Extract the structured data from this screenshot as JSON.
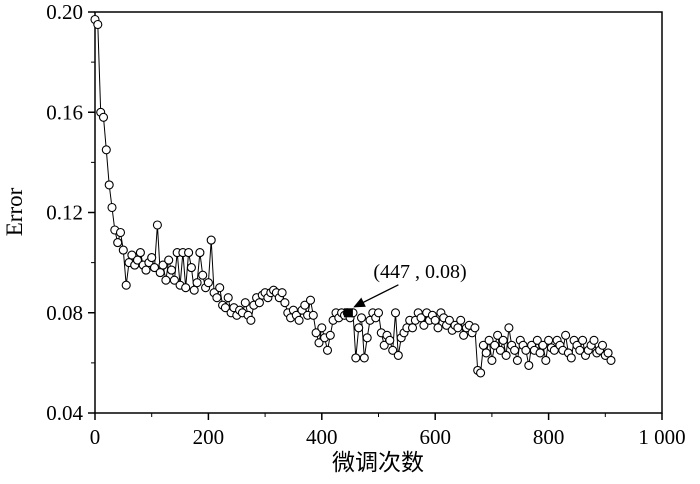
{
  "chart_data": {
    "type": "line",
    "title": "",
    "xlabel": "微调次数",
    "ylabel": "Error",
    "xlim": [
      0,
      1000
    ],
    "ylim": [
      0.04,
      0.2
    ],
    "grid": false,
    "legend": "none",
    "marker": "open-circle",
    "xticks": {
      "values": [
        0,
        200,
        400,
        600,
        800,
        1000
      ],
      "labels": [
        "0",
        "200",
        "400",
        "600",
        "800",
        "1 000"
      ],
      "minor_values": [
        100,
        300,
        500,
        700,
        900
      ]
    },
    "yticks": {
      "values": [
        0.04,
        0.08,
        0.12,
        0.16,
        0.2
      ],
      "labels": [
        "0.04",
        "0.08",
        "0.12",
        "0.16",
        "0.20"
      ],
      "minor_values": [
        0.06,
        0.1,
        0.14,
        0.18
      ]
    },
    "x": [
      0,
      5,
      10,
      15,
      20,
      25,
      30,
      35,
      40,
      45,
      50,
      55,
      60,
      65,
      70,
      75,
      80,
      85,
      90,
      95,
      100,
      105,
      110,
      115,
      120,
      125,
      130,
      135,
      140,
      145,
      150,
      155,
      160,
      165,
      170,
      175,
      180,
      185,
      190,
      195,
      200,
      205,
      210,
      215,
      220,
      225,
      230,
      235,
      240,
      245,
      250,
      255,
      260,
      265,
      270,
      275,
      280,
      285,
      290,
      295,
      300,
      305,
      310,
      315,
      320,
      325,
      330,
      335,
      340,
      345,
      350,
      355,
      360,
      365,
      370,
      375,
      380,
      385,
      390,
      395,
      400,
      405,
      410,
      415,
      420,
      425,
      430,
      435,
      440,
      445,
      450,
      455,
      460,
      465,
      470,
      475,
      480,
      485,
      490,
      495,
      500,
      505,
      510,
      515,
      520,
      525,
      530,
      535,
      540,
      545,
      550,
      555,
      560,
      565,
      570,
      575,
      580,
      585,
      590,
      595,
      600,
      605,
      610,
      615,
      620,
      625,
      630,
      635,
      640,
      645,
      650,
      655,
      660,
      665,
      670,
      675,
      680,
      685,
      690,
      695,
      700,
      705,
      710,
      715,
      720,
      725,
      730,
      735,
      740,
      745,
      750,
      755,
      760,
      765,
      770,
      775,
      780,
      785,
      790,
      795,
      800,
      805,
      810,
      815,
      820,
      825,
      830,
      835,
      840,
      845,
      850,
      855,
      860,
      865,
      870,
      875,
      880,
      885,
      890,
      895,
      900,
      905,
      910
    ],
    "y": [
      0.197,
      0.195,
      0.16,
      0.158,
      0.145,
      0.131,
      0.122,
      0.113,
      0.108,
      0.112,
      0.105,
      0.091,
      0.1,
      0.103,
      0.099,
      0.101,
      0.104,
      0.099,
      0.097,
      0.1,
      0.102,
      0.098,
      0.115,
      0.096,
      0.099,
      0.093,
      0.101,
      0.097,
      0.093,
      0.104,
      0.091,
      0.104,
      0.09,
      0.104,
      0.098,
      0.089,
      0.092,
      0.104,
      0.095,
      0.09,
      0.092,
      0.109,
      0.088,
      0.086,
      0.09,
      0.083,
      0.082,
      0.086,
      0.08,
      0.082,
      0.079,
      0.081,
      0.08,
      0.084,
      0.079,
      0.077,
      0.083,
      0.086,
      0.084,
      0.087,
      0.088,
      0.086,
      0.088,
      0.089,
      0.088,
      0.086,
      0.088,
      0.084,
      0.08,
      0.078,
      0.081,
      0.079,
      0.077,
      0.081,
      0.083,
      0.079,
      0.085,
      0.079,
      0.072,
      0.068,
      0.074,
      0.07,
      0.065,
      0.071,
      0.077,
      0.08,
      0.078,
      0.08,
      0.079,
      0.08,
      0.078,
      0.08,
      0.062,
      0.074,
      0.078,
      0.062,
      0.07,
      0.077,
      0.08,
      0.078,
      0.08,
      0.072,
      0.067,
      0.071,
      0.069,
      0.065,
      0.08,
      0.063,
      0.07,
      0.072,
      0.074,
      0.077,
      0.074,
      0.077,
      0.08,
      0.078,
      0.075,
      0.08,
      0.077,
      0.079,
      0.077,
      0.074,
      0.08,
      0.078,
      0.075,
      0.077,
      0.073,
      0.075,
      0.074,
      0.077,
      0.071,
      0.074,
      0.075,
      0.072,
      0.074,
      0.057,
      0.056,
      0.067,
      0.064,
      0.069,
      0.061,
      0.067,
      0.071,
      0.065,
      0.069,
      0.063,
      0.074,
      0.067,
      0.065,
      0.061,
      0.069,
      0.067,
      0.065,
      0.059,
      0.067,
      0.065,
      0.069,
      0.064,
      0.067,
      0.061,
      0.069,
      0.066,
      0.065,
      0.069,
      0.067,
      0.065,
      0.071,
      0.064,
      0.062,
      0.069,
      0.067,
      0.065,
      0.069,
      0.063,
      0.065,
      0.067,
      0.069,
      0.064,
      0.065,
      0.067,
      0.063,
      0.064,
      0.061
    ],
    "annotation": {
      "x": 447,
      "y": 0.08,
      "label": "(447 , 0.08)",
      "marker": "filled-square"
    },
    "colors": {
      "line": "#000000",
      "marker_stroke": "#000000",
      "marker_fill": "#ffffff",
      "axis": "#000000",
      "annotation_marker": "#000000"
    }
  }
}
